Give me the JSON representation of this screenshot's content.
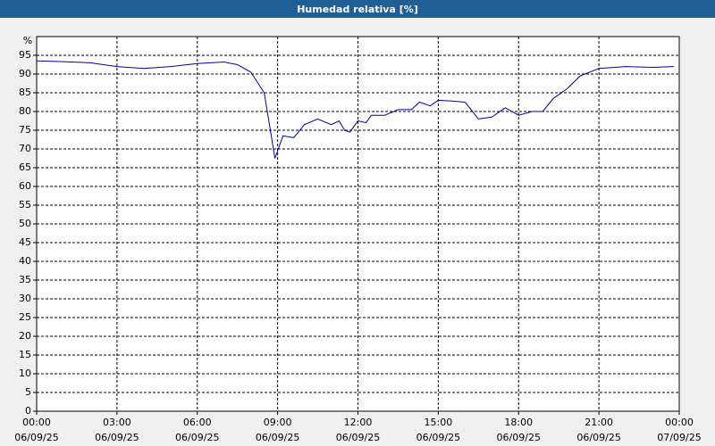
{
  "chart_data": {
    "type": "line",
    "title": "Humedad relativa [%]",
    "y_label": "%",
    "x": [
      0,
      1,
      2,
      3,
      4,
      5,
      6,
      7,
      7.5,
      8,
      8.5,
      8.9,
      9.2,
      9.6,
      10,
      10.5,
      11,
      11.3,
      11.5,
      11.7,
      12,
      12.3,
      12.5,
      13,
      13.5,
      14,
      14.3,
      14.7,
      15,
      15.5,
      16,
      16.5,
      17,
      17.5,
      18,
      18.5,
      18.9,
      19.3,
      19.8,
      20.3,
      21,
      22,
      23,
      23.8
    ],
    "series": [
      {
        "name": "Humedad relativa",
        "color": "#0000a0",
        "values": [
          93.5,
          93.3,
          93,
          92,
          91.5,
          92,
          92.8,
          93.2,
          92.5,
          90.5,
          85,
          67.5,
          73.5,
          73,
          76.5,
          78,
          76.5,
          77.5,
          75,
          74.5,
          77.5,
          77,
          79,
          79,
          80.5,
          80.5,
          82.5,
          81.5,
          83,
          82.8,
          82.5,
          78,
          78.5,
          81,
          79,
          80,
          80,
          83.5,
          86,
          89.5,
          91.5,
          92,
          91.8,
          92
        ]
      }
    ],
    "xlim": [
      0,
      24
    ],
    "ylim": [
      0,
      100
    ],
    "xticks": [
      {
        "value": 0,
        "label": "00:00"
      },
      {
        "value": 3,
        "label": "03:00"
      },
      {
        "value": 6,
        "label": "06:00"
      },
      {
        "value": 9,
        "label": "09:00"
      },
      {
        "value": 12,
        "label": "12:00"
      },
      {
        "value": 15,
        "label": "15:00"
      },
      {
        "value": 18,
        "label": "18:00"
      },
      {
        "value": 21,
        "label": "21:00"
      },
      {
        "value": 24,
        "label": "00:00"
      }
    ],
    "xtick_dates": [
      "06/09/25",
      "06/09/25",
      "06/09/25",
      "06/09/25",
      "06/09/25",
      "06/09/25",
      "06/09/25",
      "06/09/25",
      "07/09/25"
    ],
    "yticks": [
      0,
      5,
      10,
      15,
      20,
      25,
      30,
      35,
      40,
      45,
      50,
      55,
      60,
      65,
      70,
      75,
      80,
      85,
      90,
      95
    ],
    "grid": true
  }
}
